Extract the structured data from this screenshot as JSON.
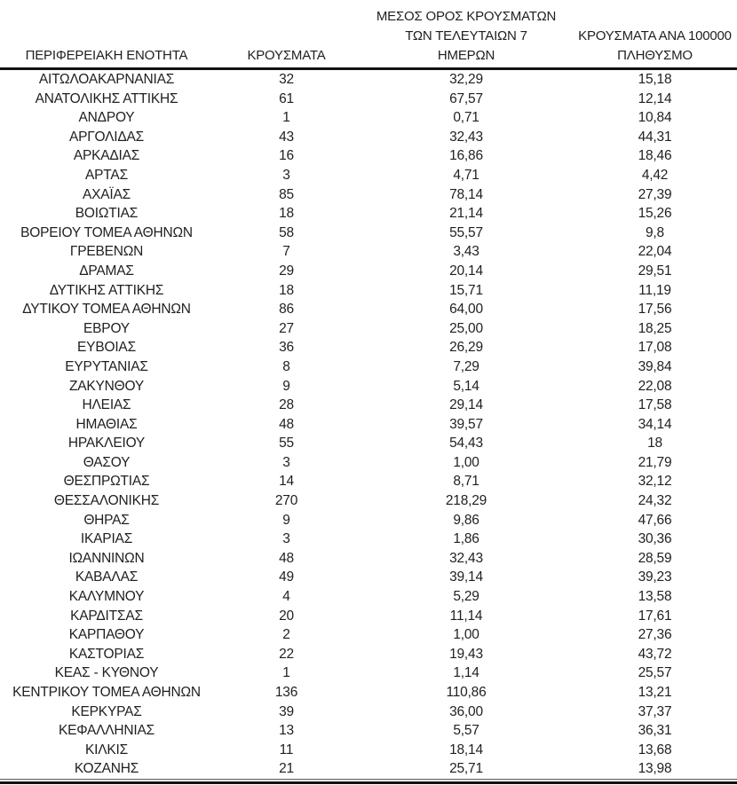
{
  "table": {
    "title": "regional-covid-cases-table",
    "columns": [
      {
        "label": "ΠΕΡΙΦΕΡΕΙΑΚΗ ΕΝΟΤΗΤΑ"
      },
      {
        "label": "ΚΡΟΥΣΜΑΤΑ"
      },
      {
        "label": "ΜΕΣΟΣ ΟΡΟΣ ΚΡΟΥΣΜΑΤΩΝ\nΤΩΝ ΤΕΛΕΥΤΑΙΩΝ 7\nΗΜΕΡΩΝ"
      },
      {
        "label": "ΚΡΟΥΣΜΑΤΑ ΑΝΑ 100000\nΠΛΗΘΥΣΜΟ"
      }
    ],
    "rows": [
      [
        "ΑΙΤΩΛΟΑΚΑΡΝΑΝΙΑΣ",
        "32",
        "32,29",
        "15,18"
      ],
      [
        "ΑΝΑΤΟΛΙΚΗΣ ΑΤΤΙΚΗΣ",
        "61",
        "67,57",
        "12,14"
      ],
      [
        "ΑΝΔΡΟΥ",
        "1",
        "0,71",
        "10,84"
      ],
      [
        "ΑΡΓΟΛΙΔΑΣ",
        "43",
        "32,43",
        "44,31"
      ],
      [
        "ΑΡΚΑΔΙΑΣ",
        "16",
        "16,86",
        "18,46"
      ],
      [
        "ΑΡΤΑΣ",
        "3",
        "4,71",
        "4,42"
      ],
      [
        "ΑΧΑΪΑΣ",
        "85",
        "78,14",
        "27,39"
      ],
      [
        "ΒΟΙΩΤΙΑΣ",
        "18",
        "21,14",
        "15,26"
      ],
      [
        "ΒΟΡΕΙΟΥ ΤΟΜΕΑ ΑΘΗΝΩΝ",
        "58",
        "55,57",
        "9,8"
      ],
      [
        "ΓΡΕΒΕΝΩΝ",
        "7",
        "3,43",
        "22,04"
      ],
      [
        "ΔΡΑΜΑΣ",
        "29",
        "20,14",
        "29,51"
      ],
      [
        "ΔΥΤΙΚΗΣ ΑΤΤΙΚΗΣ",
        "18",
        "15,71",
        "11,19"
      ],
      [
        "ΔΥΤΙΚΟΥ ΤΟΜΕΑ ΑΘΗΝΩΝ",
        "86",
        "64,00",
        "17,56"
      ],
      [
        "ΕΒΡΟΥ",
        "27",
        "25,00",
        "18,25"
      ],
      [
        "ΕΥΒΟΙΑΣ",
        "36",
        "26,29",
        "17,08"
      ],
      [
        "ΕΥΡΥΤΑΝΙΑΣ",
        "8",
        "7,29",
        "39,84"
      ],
      [
        "ΖΑΚΥΝΘΟΥ",
        "9",
        "5,14",
        "22,08"
      ],
      [
        "ΗΛΕΙΑΣ",
        "28",
        "29,14",
        "17,58"
      ],
      [
        "ΗΜΑΘΙΑΣ",
        "48",
        "39,57",
        "34,14"
      ],
      [
        "ΗΡΑΚΛΕΙΟΥ",
        "55",
        "54,43",
        "18"
      ],
      [
        "ΘΑΣΟΥ",
        "3",
        "1,00",
        "21,79"
      ],
      [
        "ΘΕΣΠΡΩΤΙΑΣ",
        "14",
        "8,71",
        "32,12"
      ],
      [
        "ΘΕΣΣΑΛΟΝΙΚΗΣ",
        "270",
        "218,29",
        "24,32"
      ],
      [
        "ΘΗΡΑΣ",
        "9",
        "9,86",
        "47,66"
      ],
      [
        "ΙΚΑΡΙΑΣ",
        "3",
        "1,86",
        "30,36"
      ],
      [
        "ΙΩΑΝΝΙΝΩΝ",
        "48",
        "32,43",
        "28,59"
      ],
      [
        "ΚΑΒΑΛΑΣ",
        "49",
        "39,14",
        "39,23"
      ],
      [
        "ΚΑΛΥΜΝΟΥ",
        "4",
        "5,29",
        "13,58"
      ],
      [
        "ΚΑΡΔΙΤΣΑΣ",
        "20",
        "11,14",
        "17,61"
      ],
      [
        "ΚΑΡΠΑΘΟΥ",
        "2",
        "1,00",
        "27,36"
      ],
      [
        "ΚΑΣΤΟΡΙΑΣ",
        "22",
        "19,43",
        "43,72"
      ],
      [
        "ΚΕΑΣ - ΚΥΘΝΟΥ",
        "1",
        "1,14",
        "25,57"
      ],
      [
        "ΚΕΝΤΡΙΚΟΥ ΤΟΜΕΑ ΑΘΗΝΩΝ",
        "136",
        "110,86",
        "13,21"
      ],
      [
        "ΚΕΡΚΥΡΑΣ",
        "39",
        "36,00",
        "37,37"
      ],
      [
        "ΚΕΦΑΛΛΗΝΙΑΣ",
        "13",
        "5,57",
        "36,31"
      ],
      [
        "ΚΙΛΚΙΣ",
        "11",
        "18,14",
        "13,68"
      ],
      [
        "ΚΟΖΑΝΗΣ",
        "21",
        "25,71",
        "13,98"
      ]
    ],
    "text_color": "#1f1f1f",
    "rule_color": "#111111"
  }
}
